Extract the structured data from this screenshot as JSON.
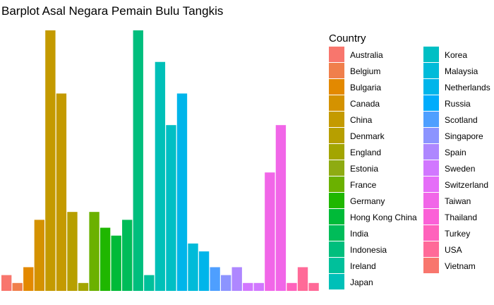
{
  "chart_data": {
    "type": "bar",
    "title": "Barplot Asal Negara Pemain Bulu Tangkis",
    "xlabel": "",
    "ylabel": "",
    "grid": false,
    "legend": {
      "title": "Country",
      "placement": "right",
      "entries": [
        {
          "name": "Australia",
          "color": "#F8766D"
        },
        {
          "name": "Belgium",
          "color": "#F07F4C"
        },
        {
          "name": "Bulgaria",
          "color": "#E38900"
        },
        {
          "name": "Canada",
          "color": "#D49200"
        },
        {
          "name": "China",
          "color": "#C49A00"
        },
        {
          "name": "Denmark",
          "color": "#B79F00"
        },
        {
          "name": "England",
          "color": "#A3A500"
        },
        {
          "name": "Estonia",
          "color": "#8EAB12"
        },
        {
          "name": "France",
          "color": "#6BB100"
        },
        {
          "name": "Germany",
          "color": "#1FB700"
        },
        {
          "name": "Hong Kong China",
          "color": "#00BA38"
        },
        {
          "name": "India",
          "color": "#00BC59"
        },
        {
          "name": "Indonesia",
          "color": "#00BE7D"
        },
        {
          "name": "Ireland",
          "color": "#00C09B"
        },
        {
          "name": "Japan",
          "color": "#00C0B8"
        },
        {
          "name": "Korea",
          "color": "#00BFC4"
        },
        {
          "name": "Malaysia",
          "color": "#00BBD9"
        },
        {
          "name": "Netherlands",
          "color": "#00B5EA"
        },
        {
          "name": "Russia",
          "color": "#00ACFC"
        },
        {
          "name": "Scotland",
          "color": "#4E9FFF"
        },
        {
          "name": "Singapore",
          "color": "#8C94FF"
        },
        {
          "name": "Spain",
          "color": "#AE87FF"
        },
        {
          "name": "Sweden",
          "color": "#D177FF"
        },
        {
          "name": "Switzerland",
          "color": "#E56EF8"
        },
        {
          "name": "Taiwan",
          "color": "#F166E8"
        },
        {
          "name": "Thailand",
          "color": "#FB61D7"
        },
        {
          "name": "Turkey",
          "color": "#FF62BC"
        },
        {
          "name": "USA",
          "color": "#FF6A98"
        },
        {
          "name": "Vietnam",
          "color": "#F8766D"
        }
      ]
    },
    "ylim": [
      0,
      33
    ],
    "bars": [
      {
        "value": 2,
        "color": "#F8766D"
      },
      {
        "value": 1,
        "color": "#F07F4C"
      },
      {
        "value": 3,
        "color": "#E38900"
      },
      {
        "value": 9,
        "color": "#D49200"
      },
      {
        "value": 33,
        "color": "#C49A00"
      },
      {
        "value": 25,
        "color": "#C49A00"
      },
      {
        "value": 10,
        "color": "#B79F00"
      },
      {
        "value": 1,
        "color": "#A3A500"
      },
      {
        "value": 10,
        "color": "#6BB100"
      },
      {
        "value": 8,
        "color": "#1FB700"
      },
      {
        "value": 7,
        "color": "#00BA38"
      },
      {
        "value": 9,
        "color": "#00BC59"
      },
      {
        "value": 33,
        "color": "#00BE7D"
      },
      {
        "value": 2,
        "color": "#00C09B"
      },
      {
        "value": 29,
        "color": "#00C0B8"
      },
      {
        "value": 21,
        "color": "#00BFC4"
      },
      {
        "value": 25,
        "color": "#00B5EA"
      },
      {
        "value": 6,
        "color": "#00BBD9"
      },
      {
        "value": 5,
        "color": "#00B5EA"
      },
      {
        "value": 3,
        "color": "#4E9FFF"
      },
      {
        "value": 2,
        "color": "#8C94FF"
      },
      {
        "value": 3,
        "color": "#AE87FF"
      },
      {
        "value": 1,
        "color": "#D177FF"
      },
      {
        "value": 1,
        "color": "#D177FF"
      },
      {
        "value": 15,
        "color": "#F166E8"
      },
      {
        "value": 21,
        "color": "#F166E8"
      },
      {
        "value": 1,
        "color": "#FF62BC"
      },
      {
        "value": 3,
        "color": "#FF6A98"
      },
      {
        "value": 1,
        "color": "#FF6A98"
      }
    ]
  }
}
